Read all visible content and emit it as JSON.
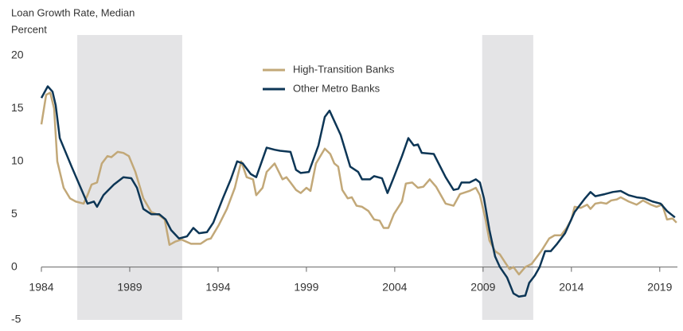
{
  "chart_data": {
    "type": "line",
    "title": "Loan Growth Rate, Median",
    "y_label": "Percent",
    "xlim": [
      1984,
      2020
    ],
    "xticks": [
      1984,
      1989,
      1994,
      1999,
      2004,
      2009,
      2014,
      2019
    ],
    "ylim": [
      -5,
      20
    ],
    "yticks": [
      -5,
      0,
      5,
      10,
      15,
      20
    ],
    "grid": false,
    "legend": "upper center",
    "shaded_periods": [
      [
        1986.03,
        1991.97
      ],
      [
        2008.95,
        2011.84
      ]
    ],
    "shade_color": "#e4e4e6",
    "series": [
      {
        "name": "High-Transition Banks",
        "color": "#c2a878",
        "x": [
          1984.0,
          1984.27,
          1984.5,
          1984.72,
          1984.9,
          1985.26,
          1985.62,
          1985.94,
          1986.39,
          1986.61,
          1986.84,
          1987.15,
          1987.42,
          1987.74,
          1987.96,
          1988.32,
          1988.64,
          1988.95,
          1989.32,
          1989.77,
          1990.22,
          1990.67,
          1990.98,
          1991.25,
          1991.57,
          1991.93,
          1992.47,
          1993.01,
          1993.37,
          1993.59,
          1994.05,
          1994.5,
          1994.95,
          1995.31,
          1995.62,
          1995.98,
          1996.16,
          1996.52,
          1996.75,
          1997.2,
          1997.65,
          1997.87,
          1998.1,
          1998.41,
          1998.68,
          1999.0,
          1999.23,
          1999.54,
          2000.04,
          2000.35,
          2000.58,
          2000.8,
          2001.03,
          2001.34,
          2001.57,
          2001.84,
          2002.15,
          2002.51,
          2002.83,
          2003.14,
          2003.37,
          2003.64,
          2003.95,
          2004.41,
          2004.63,
          2004.99,
          2005.31,
          2005.62,
          2005.98,
          2006.34,
          2006.88,
          2007.33,
          2007.69,
          2008.23,
          2008.59,
          2008.82,
          2009.14,
          2009.36,
          2009.68,
          2009.95,
          2010.26,
          2010.5,
          2010.72,
          2011.03,
          2011.39,
          2011.75,
          2012.29,
          2012.74,
          2013.05,
          2013.41,
          2013.73,
          2014.0,
          2014.18,
          2014.53,
          2014.89,
          2015.08,
          2015.35,
          2015.67,
          2015.98,
          2016.25,
          2016.57,
          2016.79,
          2017.24,
          2017.69,
          2018.05,
          2018.5,
          2018.82,
          2019.14,
          2019.41,
          2019.72,
          2019.95
        ],
        "values": [
          13.5,
          16.3,
          16.5,
          15.0,
          10.0,
          7.5,
          6.5,
          6.2,
          6.0,
          6.8,
          7.8,
          8.0,
          9.8,
          10.5,
          10.4,
          10.9,
          10.8,
          10.5,
          9.0,
          6.5,
          5.2,
          4.9,
          4.5,
          2.1,
          2.4,
          2.6,
          2.2,
          2.2,
          2.6,
          2.7,
          4.0,
          5.5,
          7.5,
          10.0,
          8.5,
          8.3,
          6.8,
          7.5,
          9.0,
          9.8,
          8.3,
          8.5,
          8.0,
          7.3,
          7.0,
          7.5,
          7.2,
          9.8,
          11.2,
          10.7,
          9.8,
          9.5,
          7.3,
          6.5,
          6.6,
          5.8,
          5.7,
          5.3,
          4.5,
          4.4,
          3.7,
          3.7,
          5.0,
          6.2,
          7.9,
          8.0,
          7.5,
          7.6,
          8.3,
          7.6,
          6.0,
          5.8,
          6.9,
          7.2,
          7.5,
          6.8,
          4.5,
          2.5,
          1.5,
          1.2,
          0.4,
          -0.2,
          0.0,
          -0.7,
          0.0,
          0.3,
          1.5,
          2.7,
          3.0,
          3.0,
          3.7,
          4.5,
          5.7,
          5.6,
          5.9,
          5.5,
          6.0,
          6.1,
          6.0,
          6.3,
          6.4,
          6.6,
          6.2,
          5.9,
          6.3,
          5.9,
          5.7,
          5.9,
          4.5,
          4.6,
          4.2
        ]
      },
      {
        "name": "Other Metro Banks",
        "color": "#0d3656",
        "x": [
          1984.0,
          1984.36,
          1984.63,
          1984.81,
          1985.04,
          1985.71,
          1986.61,
          1986.97,
          1987.15,
          1987.51,
          1988.1,
          1988.64,
          1989.09,
          1989.41,
          1989.77,
          1990.22,
          1990.67,
          1991.03,
          1991.34,
          1991.79,
          1992.24,
          1992.6,
          1992.92,
          1993.37,
          1993.73,
          1994.27,
          1994.72,
          1995.08,
          1995.4,
          1995.85,
          1996.16,
          1996.75,
          1997.2,
          1997.51,
          1998.1,
          1998.41,
          1998.68,
          1999.14,
          1999.68,
          2000.04,
          2000.31,
          2000.94,
          2001.48,
          2001.93,
          2002.15,
          2002.6,
          2002.83,
          2003.28,
          2003.59,
          2003.95,
          2004.41,
          2004.77,
          2005.08,
          2005.31,
          2005.53,
          2006.21,
          2006.88,
          2007.33,
          2007.6,
          2007.78,
          2008.23,
          2008.59,
          2008.82,
          2009.05,
          2009.36,
          2009.68,
          2009.95,
          2010.36,
          2010.72,
          2011.03,
          2011.39,
          2011.61,
          2011.93,
          2012.2,
          2012.51,
          2012.83,
          2013.19,
          2013.64,
          2014.18,
          2014.77,
          2015.08,
          2015.35,
          2015.89,
          2016.34,
          2016.79,
          2017.24,
          2017.69,
          2018.14,
          2018.59,
          2019.05,
          2019.41,
          2019.86
        ],
        "values": [
          16.0,
          17.1,
          16.6,
          15.3,
          12.2,
          9.5,
          6.0,
          6.2,
          5.7,
          6.8,
          7.8,
          8.5,
          8.4,
          7.5,
          5.5,
          5.0,
          5.0,
          4.5,
          3.5,
          2.7,
          2.9,
          3.7,
          3.2,
          3.3,
          4.2,
          6.5,
          8.3,
          10.0,
          9.8,
          8.8,
          8.5,
          11.3,
          11.1,
          11.0,
          10.9,
          9.2,
          8.9,
          9.0,
          11.5,
          14.2,
          14.8,
          12.5,
          9.5,
          9.0,
          8.3,
          8.3,
          8.6,
          8.4,
          7.0,
          8.5,
          10.5,
          12.2,
          11.5,
          11.6,
          10.8,
          10.7,
          8.5,
          7.3,
          7.4,
          8.0,
          8.0,
          8.3,
          8.0,
          6.5,
          3.5,
          1.0,
          0.0,
          -1.0,
          -2.5,
          -2.8,
          -2.7,
          -1.5,
          -0.8,
          0.0,
          1.5,
          1.5,
          2.2,
          3.2,
          5.2,
          6.5,
          7.1,
          6.7,
          6.9,
          7.1,
          7.2,
          6.8,
          6.6,
          6.5,
          6.2,
          6.0,
          5.3,
          4.7
        ]
      }
    ]
  }
}
